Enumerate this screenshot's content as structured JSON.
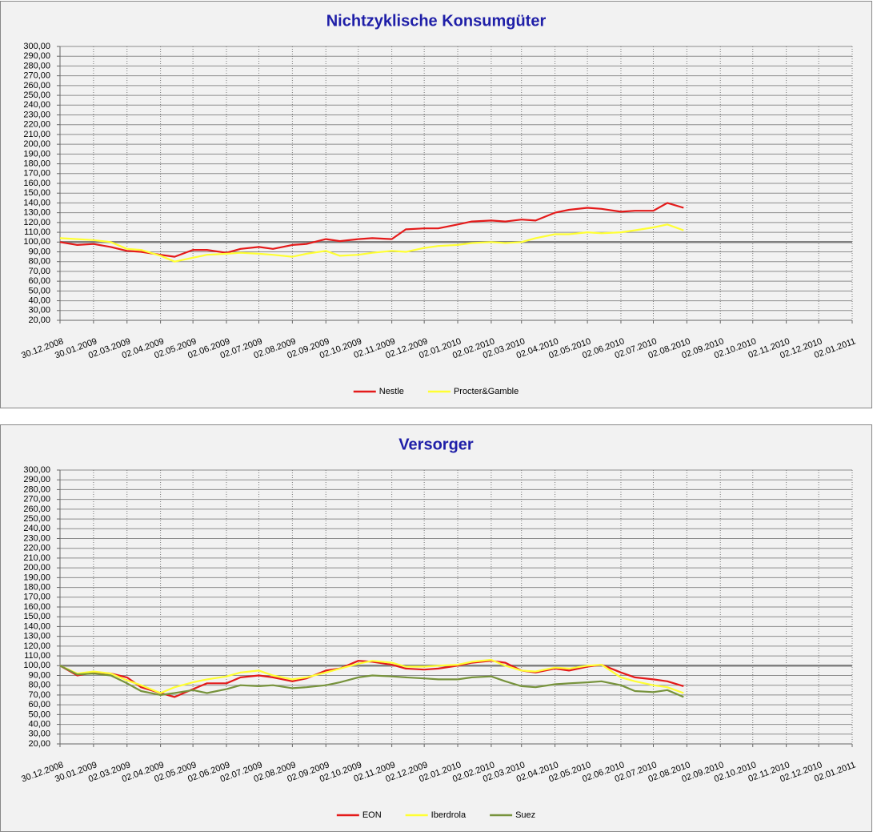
{
  "chart_data": [
    {
      "type": "line",
      "title": "Nichtzyklische Konsumgüter",
      "x": [
        "30.12.2008",
        "15.01.2009",
        "30.01.2009",
        "15.02.2009",
        "02.03.2009",
        "15.03.2009",
        "02.04.2009",
        "15.04.2009",
        "02.05.2009",
        "15.05.2009",
        "02.06.2009",
        "15.06.2009",
        "02.07.2009",
        "15.07.2009",
        "02.08.2009",
        "15.08.2009",
        "02.09.2009",
        "15.09.2009",
        "02.10.2009",
        "15.10.2009",
        "02.11.2009",
        "15.11.2009",
        "02.12.2009",
        "15.12.2009",
        "02.01.2010",
        "15.01.2010",
        "02.02.2010",
        "15.02.2010",
        "02.03.2010",
        "15.03.2010",
        "02.04.2010",
        "15.04.2010",
        "02.05.2010",
        "15.05.2010",
        "02.06.2010",
        "15.06.2010",
        "02.07.2010",
        "15.07.2010",
        "30.07.2010"
      ],
      "series": [
        {
          "name": "Nestle",
          "color": "#e41a1a",
          "values": [
            100,
            97,
            98,
            95,
            91,
            90,
            87,
            85,
            92,
            92,
            89,
            93,
            95,
            93,
            97,
            98,
            103,
            101,
            103,
            104,
            103,
            113,
            114,
            114,
            118,
            121,
            122,
            121,
            123,
            122,
            130,
            133,
            135,
            134,
            131,
            132,
            132,
            140,
            135
          ]
        },
        {
          "name": "Procter&Gamble",
          "color": "#ffff33",
          "values": [
            104,
            103,
            102,
            100,
            93,
            92,
            86,
            80,
            84,
            87,
            88,
            89,
            88,
            87,
            85,
            88,
            91,
            86,
            87,
            89,
            91,
            90,
            94,
            96,
            97,
            99,
            100,
            99,
            100,
            104,
            108,
            108,
            110,
            109,
            110,
            112,
            115,
            118,
            112
          ]
        }
      ],
      "reference_line": 100,
      "xlim": [
        "30.12.2008",
        "02.01.2011"
      ],
      "xticks": [
        "30.12.2008",
        "30.01.2009",
        "02.03.2009",
        "02.04.2009",
        "02.05.2009",
        "02.06.2009",
        "02.07.2009",
        "02.08.2009",
        "02.09.2009",
        "02.10.2009",
        "02.11.2009",
        "02.12.2009",
        "02.01.2010",
        "02.02.2010",
        "02.03.2010",
        "02.04.2010",
        "02.05.2010",
        "02.06.2010",
        "02.07.2010",
        "02.08.2010",
        "02.09.2010",
        "02.10.2010",
        "02.11.2010",
        "02.12.2010",
        "02.01.2011"
      ],
      "ylim": [
        20,
        300
      ],
      "yticks": [
        {
          "value": 20,
          "label": "20,00"
        },
        {
          "value": 30,
          "label": "30,00"
        },
        {
          "value": 40,
          "label": "40,00"
        },
        {
          "value": 50,
          "label": "50,00"
        },
        {
          "value": 60,
          "label": "60,00"
        },
        {
          "value": 70,
          "label": "70,00"
        },
        {
          "value": 80,
          "label": "80,00"
        },
        {
          "value": 90,
          "label": "90,00"
        },
        {
          "value": 100,
          "label": "100,00"
        },
        {
          "value": 110,
          "label": "110,00"
        },
        {
          "value": 120,
          "label": "120,00"
        },
        {
          "value": 130,
          "label": "130,00"
        },
        {
          "value": 140,
          "label": "140,00"
        },
        {
          "value": 150,
          "label": "150,00"
        },
        {
          "value": 160,
          "label": "160,00"
        },
        {
          "value": 170,
          "label": "170,00"
        },
        {
          "value": 180,
          "label": "180,00"
        },
        {
          "value": 190,
          "label": "190,00"
        },
        {
          "value": 200,
          "label": "200,00"
        },
        {
          "value": 210,
          "label": "210,00"
        },
        {
          "value": 220,
          "label": "220,00"
        },
        {
          "value": 230,
          "label": "230,00"
        },
        {
          "value": 240,
          "label": "240,00"
        },
        {
          "value": 250,
          "label": "250,00"
        },
        {
          "value": 260,
          "label": "260,00"
        },
        {
          "value": 270,
          "label": "270,00"
        },
        {
          "value": 280,
          "label": "280,00"
        },
        {
          "value": 290,
          "label": "290,00"
        },
        {
          "value": 300,
          "label": "300,00"
        }
      ],
      "grid": true,
      "legend": "bottom"
    },
    {
      "type": "line",
      "title": "Versorger",
      "x": [
        "30.12.2008",
        "15.01.2009",
        "30.01.2009",
        "15.02.2009",
        "02.03.2009",
        "15.03.2009",
        "02.04.2009",
        "15.04.2009",
        "02.05.2009",
        "15.05.2009",
        "02.06.2009",
        "15.06.2009",
        "02.07.2009",
        "15.07.2009",
        "02.08.2009",
        "15.08.2009",
        "02.09.2009",
        "15.09.2009",
        "02.10.2009",
        "15.10.2009",
        "02.11.2009",
        "15.11.2009",
        "02.12.2009",
        "15.12.2009",
        "02.01.2010",
        "15.01.2010",
        "02.02.2010",
        "15.02.2010",
        "02.03.2010",
        "15.03.2010",
        "02.04.2010",
        "15.04.2010",
        "02.05.2010",
        "15.05.2010",
        "02.06.2010",
        "15.06.2010",
        "02.07.2010",
        "15.07.2010",
        "30.07.2010"
      ],
      "series": [
        {
          "name": "EON",
          "color": "#e41a1a",
          "values": [
            100,
            90,
            93,
            92,
            88,
            78,
            72,
            68,
            76,
            82,
            82,
            88,
            90,
            88,
            84,
            87,
            95,
            97,
            105,
            104,
            101,
            97,
            96,
            97,
            100,
            103,
            105,
            103,
            95,
            93,
            97,
            95,
            99,
            101,
            93,
            88,
            86,
            84,
            79
          ]
        },
        {
          "name": "Iberdrola",
          "color": "#ffff33",
          "values": [
            100,
            92,
            94,
            92,
            85,
            80,
            72,
            78,
            83,
            86,
            89,
            93,
            95,
            90,
            86,
            88,
            93,
            97,
            102,
            105,
            103,
            99,
            99,
            100,
            101,
            104,
            106,
            100,
            95,
            94,
            98,
            97,
            100,
            101,
            88,
            84,
            80,
            78,
            72
          ]
        },
        {
          "name": "Suez",
          "color": "#77933c",
          "values": [
            100,
            91,
            92,
            90,
            82,
            74,
            70,
            72,
            75,
            72,
            76,
            80,
            79,
            80,
            77,
            78,
            80,
            83,
            88,
            90,
            89,
            88,
            87,
            86,
            86,
            88,
            89,
            84,
            79,
            78,
            81,
            82,
            83,
            84,
            80,
            74,
            73,
            75,
            68
          ]
        }
      ],
      "reference_line": 100,
      "xlim": [
        "30.12.2008",
        "02.01.2011"
      ],
      "xticks": [
        "30.12.2008",
        "30.01.2009",
        "02.03.2009",
        "02.04.2009",
        "02.05.2009",
        "02.06.2009",
        "02.07.2009",
        "02.08.2009",
        "02.09.2009",
        "02.10.2009",
        "02.11.2009",
        "02.12.2009",
        "02.01.2010",
        "02.02.2010",
        "02.03.2010",
        "02.04.2010",
        "02.05.2010",
        "02.06.2010",
        "02.07.2010",
        "02.08.2010",
        "02.09.2010",
        "02.10.2010",
        "02.11.2010",
        "02.12.2010",
        "02.01.2011"
      ],
      "ylim": [
        20,
        300
      ],
      "yticks": [
        {
          "value": 20,
          "label": "20,00"
        },
        {
          "value": 30,
          "label": "30,00"
        },
        {
          "value": 40,
          "label": "40,00"
        },
        {
          "value": 50,
          "label": "50,00"
        },
        {
          "value": 60,
          "label": "60,00"
        },
        {
          "value": 70,
          "label": "70,00"
        },
        {
          "value": 80,
          "label": "80,00"
        },
        {
          "value": 90,
          "label": "90,00"
        },
        {
          "value": 100,
          "label": "100,00"
        },
        {
          "value": 110,
          "label": "110,00"
        },
        {
          "value": 120,
          "label": "120,00"
        },
        {
          "value": 130,
          "label": "130,00"
        },
        {
          "value": 140,
          "label": "140,00"
        },
        {
          "value": 150,
          "label": "150,00"
        },
        {
          "value": 160,
          "label": "160,00"
        },
        {
          "value": 170,
          "label": "170,00"
        },
        {
          "value": 180,
          "label": "180,00"
        },
        {
          "value": 190,
          "label": "190,00"
        },
        {
          "value": 200,
          "label": "200,00"
        },
        {
          "value": 210,
          "label": "210,00"
        },
        {
          "value": 220,
          "label": "220,00"
        },
        {
          "value": 230,
          "label": "230,00"
        },
        {
          "value": 240,
          "label": "240,00"
        },
        {
          "value": 250,
          "label": "250,00"
        },
        {
          "value": 260,
          "label": "260,00"
        },
        {
          "value": 270,
          "label": "270,00"
        },
        {
          "value": 280,
          "label": "280,00"
        },
        {
          "value": 290,
          "label": "290,00"
        },
        {
          "value": 300,
          "label": "300,00"
        }
      ],
      "grid": true,
      "legend": "bottom"
    }
  ]
}
